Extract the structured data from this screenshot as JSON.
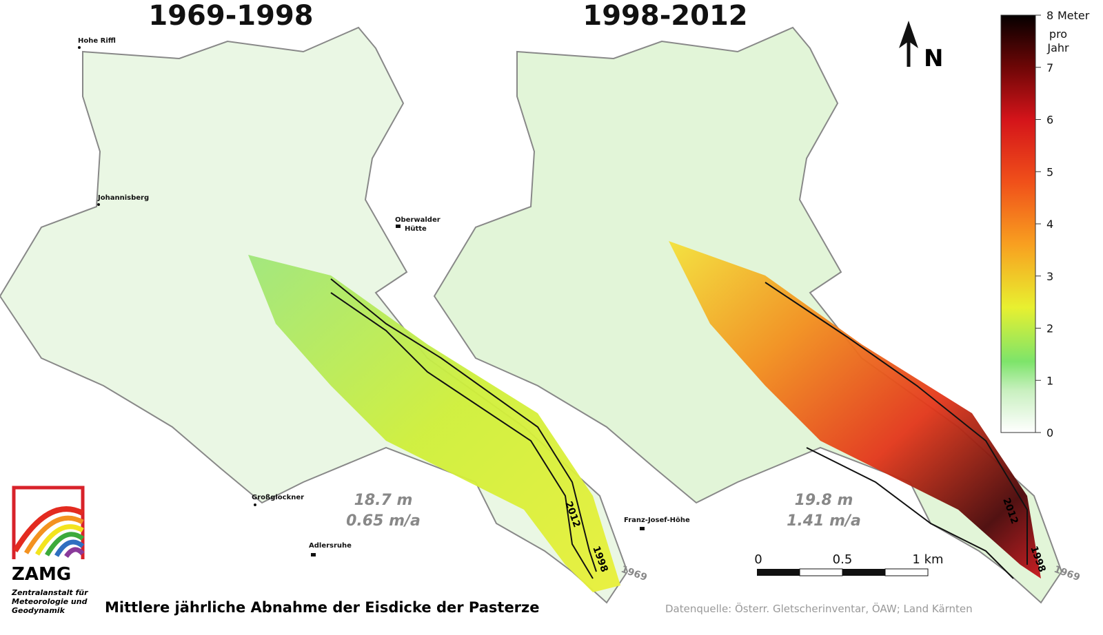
{
  "maps": [
    {
      "title": "1969-1998",
      "total": "18.7 m",
      "rate": "0.65 m/a",
      "contour_labels": [
        "2012",
        "1998",
        "1969"
      ]
    },
    {
      "title": "1998-2012",
      "total": "19.8 m",
      "rate": "1.41 m/a",
      "contour_labels": [
        "2012",
        "1998",
        "1969"
      ]
    }
  ],
  "places": [
    "Hohe Riffl",
    "Johannisberg",
    "Oberwalder",
    "Hütte",
    "Großglockner",
    "Adlersruhe",
    "Franz-Josef-Höhe"
  ],
  "north": "N",
  "legend": {
    "unit": [
      "Meter",
      "pro",
      "Jahr"
    ],
    "ticks": [
      0,
      1,
      2,
      3,
      4,
      5,
      6,
      7,
      8
    ]
  },
  "scale_bar": [
    "0",
    "0.5",
    "1 km"
  ],
  "logo": {
    "name": "ZAMG",
    "lines": [
      "Zentralanstalt für",
      "Meteorologie und",
      "Geodynamik"
    ]
  },
  "caption": "Mittlere jährliche Abnahme der Eisdicke der Pasterze",
  "source": "Datenquelle: Österr. Gletscherinventar, ÖAW; Land Kärnten"
}
